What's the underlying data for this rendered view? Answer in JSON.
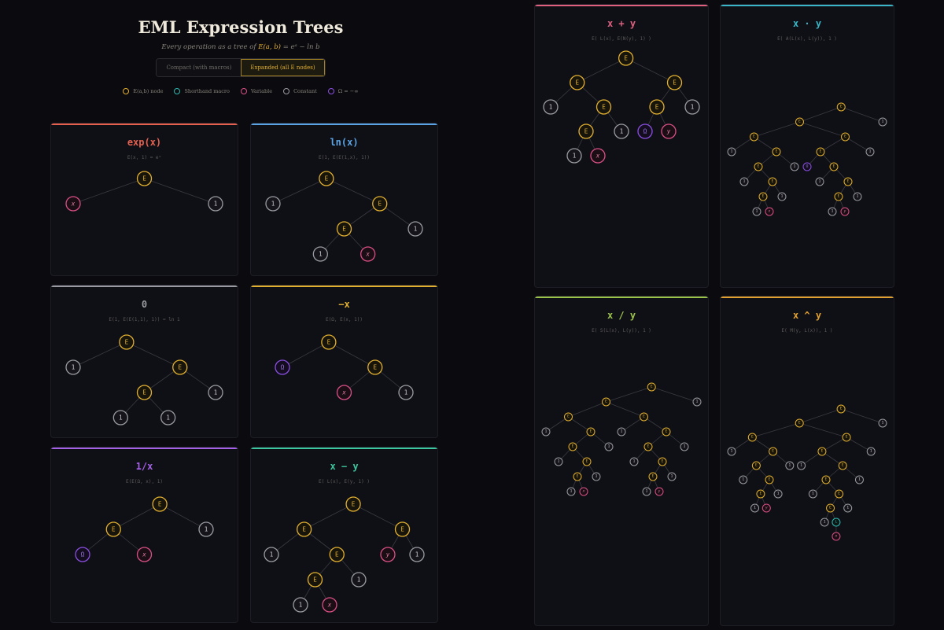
{
  "header": {
    "title": "EML Expression Trees",
    "subtitle_prefix": "Every operation as a tree of",
    "subtitle_formula": "E(a, b)",
    "subtitle_suffix": "= eᵃ − ln b",
    "toggle": {
      "compact_label": "Compact (with macros)",
      "expanded_label": "Expanded (all E nodes)",
      "selected": "expanded"
    }
  },
  "legend": [
    {
      "label": "E(a,b) node",
      "color": "#e2b030"
    },
    {
      "label": "Shorthand macro",
      "color": "#2fb8ae"
    },
    {
      "label": "Variable",
      "color": "#d94f86"
    },
    {
      "label": "Constant",
      "color": "#9a9aa2"
    },
    {
      "label": "Ω = −∞",
      "color": "#8a4fe0"
    }
  ],
  "node_styles": {
    "E": {
      "stroke": "#e2b030",
      "fill": "#17140b",
      "text": "#e2b030",
      "label": "E"
    },
    "M": {
      "stroke": "#2fb8ae",
      "fill": "#0d1816",
      "text": "#2fb8ae",
      "label": "L"
    },
    "V": {
      "stroke": "#d94f86",
      "fill": "#1a0e14",
      "text": "#e07aa3"
    },
    "C": {
      "stroke": "#9a9aa2",
      "fill": "#14141a",
      "text": "#d0d0d6",
      "label": "1"
    },
    "O": {
      "stroke": "#8a4fe0",
      "fill": "#130d1f",
      "text": "#a07af0",
      "label": "Ω"
    }
  },
  "cards": [
    {
      "title": "exp(x)",
      "formula": "E(x, 1) = eˣ",
      "accent": "#e5604f",
      "tree": [
        "E",
        [
          "V",
          "x"
        ],
        [
          "C"
        ]
      ]
    },
    {
      "title": "ln(x)",
      "formula": "E(1, E(E(1,x), 1))",
      "accent": "#5aa4e6",
      "tree": [
        "E",
        [
          "C"
        ],
        [
          "E",
          [
            "E",
            [
              "C"
            ],
            [
              "V",
              "x"
            ]
          ],
          [
            "C"
          ]
        ]
      ]
    },
    {
      "title": "0",
      "formula": "E(1, E(E(1,1), 1)) = ln 1",
      "accent": "#9a9aa2",
      "tree": [
        "E",
        [
          "C"
        ],
        [
          "E",
          [
            "E",
            [
              "C"
            ],
            [
              "C"
            ]
          ],
          [
            "C"
          ]
        ]
      ]
    },
    {
      "title": "−x",
      "formula": "E(Ω, E(x, 1))",
      "accent": "#e2b030",
      "tree": [
        "E",
        [
          "O"
        ],
        [
          "E",
          [
            "V",
            "x"
          ],
          [
            "C"
          ]
        ]
      ]
    },
    {
      "title": "1/x",
      "formula": "E(E(Ω, x), 1)",
      "accent": "#a560e8",
      "tree": [
        "E",
        [
          "E",
          [
            "O"
          ],
          [
            "V",
            "x"
          ]
        ],
        [
          "C"
        ]
      ]
    },
    {
      "title": "x − y",
      "formula": "E( L(x), E(y, 1) )",
      "accent": "#3cc6a0",
      "tree": [
        "E",
        [
          "E",
          [
            "C"
          ],
          [
            "E",
            [
              "E",
              [
                "C"
              ],
              [
                "V",
                "x"
              ]
            ],
            [
              "C"
            ]
          ]
        ],
        [
          "E",
          [
            "V",
            "y"
          ],
          [
            "C"
          ]
        ]
      ]
    },
    {
      "title": "x + y",
      "formula": "E( L(x), E(N(y), 1) )",
      "accent": "#e0607f",
      "tree": [
        "E",
        [
          "E",
          [
            "C"
          ],
          [
            "E",
            [
              "E",
              [
                "C"
              ],
              [
                "V",
                "x"
              ]
            ],
            [
              "C"
            ]
          ]
        ],
        [
          "E",
          [
            "E",
            [
              "O"
            ],
            [
              "V",
              "y"
            ]
          ],
          [
            "C"
          ]
        ]
      ]
    },
    {
      "title": "x · y",
      "formula": "E( A(L(x), L(y)), 1 )",
      "accent": "#3ab6c8",
      "tree": [
        "E",
        [
          "E",
          [
            "E",
            [
              "C"
            ],
            [
              "E",
              [
                "E",
                [
                  "C"
                ],
                [
                  "E",
                  [
                    "E",
                    [
                      "C"
                    ],
                    [
                      "V",
                      "x"
                    ]
                  ],
                  [
                    "C"
                  ]
                ]
              ],
              [
                "C"
              ]
            ]
          ],
          [
            "E",
            [
              "E",
              [
                "O"
              ],
              [
                "E",
                [
                  "C"
                ],
                [
                  "E",
                  [
                    "E",
                    [
                      "C"
                    ],
                    [
                      "V",
                      "y"
                    ]
                  ],
                  [
                    "C"
                  ]
                ]
              ]
            ],
            [
              "C"
            ]
          ]
        ],
        [
          "C"
        ]
      ]
    },
    {
      "title": "x / y",
      "formula": "E( S(L(x), L(y)), 1 )",
      "accent": "#9ac24a",
      "tree": [
        "E",
        [
          "E",
          [
            "E",
            [
              "C"
            ],
            [
              "E",
              [
                "E",
                [
                  "C"
                ],
                [
                  "E",
                  [
                    "E",
                    [
                      "C"
                    ],
                    [
                      "V",
                      "x"
                    ]
                  ],
                  [
                    "C"
                  ]
                ]
              ],
              [
                "C"
              ]
            ]
          ],
          [
            "E",
            [
              "C"
            ],
            [
              "E",
              [
                "E",
                [
                  "C"
                ],
                [
                  "E",
                  [
                    "E",
                    [
                      "C"
                    ],
                    [
                      "V",
                      "y"
                    ]
                  ],
                  [
                    "C"
                  ]
                ]
              ],
              [
                "C"
              ]
            ]
          ]
        ],
        [
          "C"
        ]
      ]
    },
    {
      "title": "x ^ y",
      "formula": "E( M(y, L(x)), 1 )",
      "accent": "#e2a030",
      "tree": [
        "E",
        [
          "E",
          [
            "E",
            [
              "C"
            ],
            [
              "E",
              [
                "E",
                [
                  "C"
                ],
                [
                  "E",
                  [
                    "E",
                    [
                      "C"
                    ],
                    [
                      "V",
                      "y"
                    ]
                  ],
                  [
                    "C"
                  ]
                ]
              ],
              [
                "C"
              ]
            ]
          ],
          [
            "E",
            [
              "E",
              [
                "C"
              ],
              [
                "E",
                [
                  "E",
                  [
                    "C"
                  ],
                  [
                    "E",
                    [
                      "E",
                      [
                        "C"
                      ],
                      [
                        "M",
                        [
                          "V",
                          "x"
                        ]
                      ]
                    ],
                    [
                      "C"
                    ]
                  ]
                ],
                [
                  "C"
                ]
              ]
            ],
            [
              "C"
            ]
          ]
        ],
        [
          "C"
        ]
      ]
    }
  ]
}
